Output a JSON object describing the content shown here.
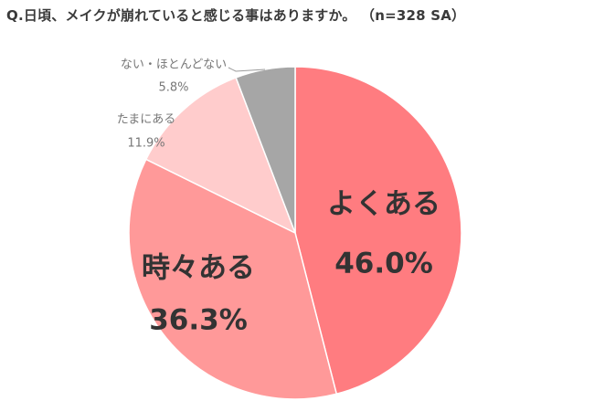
{
  "title": "Q.日頃、メイクが崩れていると感じる事はありますか。 （n=328 SA）",
  "chart_data": {
    "type": "pie",
    "categories": [
      "よくある",
      "時々ある",
      "たまにある",
      "ない・ほとんどない"
    ],
    "values": [
      46.0,
      36.3,
      11.9,
      5.8
    ],
    "value_labels": [
      "46.0%",
      "36.3%",
      "11.9%",
      "5.8%"
    ],
    "colors": [
      "#ff7c80",
      "#ff9999",
      "#ffcccc",
      "#a6a6a6"
    ],
    "start": "12 o'clock",
    "direction": "clockwise"
  }
}
